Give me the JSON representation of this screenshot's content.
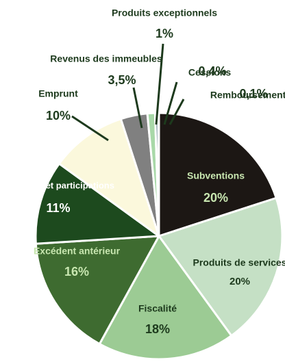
{
  "chart_data": {
    "type": "pie",
    "categories": [
      "Subventions",
      "Produits de services",
      "Fiscalité",
      "Excédent antérieur",
      "Dotations et participations",
      "Emprunt",
      "Revenus des immeubles",
      "Produits exceptionnels",
      "Cessions",
      "Remboursements"
    ],
    "values": [
      20,
      20,
      18,
      16,
      11,
      10,
      3.5,
      1,
      0.4,
      0.1
    ],
    "value_labels": [
      "20%",
      "20%",
      "18%",
      "16%",
      "11%",
      "10%",
      "3,5%",
      "1%",
      "0,4%",
      "0,1%"
    ],
    "colors": [
      "#1c1714",
      "#c5e0c5",
      "#9ccb94",
      "#3e6b30",
      "#1d4a1e",
      "#fbf8dc",
      "#808080",
      "#a8d8a8",
      "#5b7d8a",
      "#2e4a5a"
    ]
  }
}
